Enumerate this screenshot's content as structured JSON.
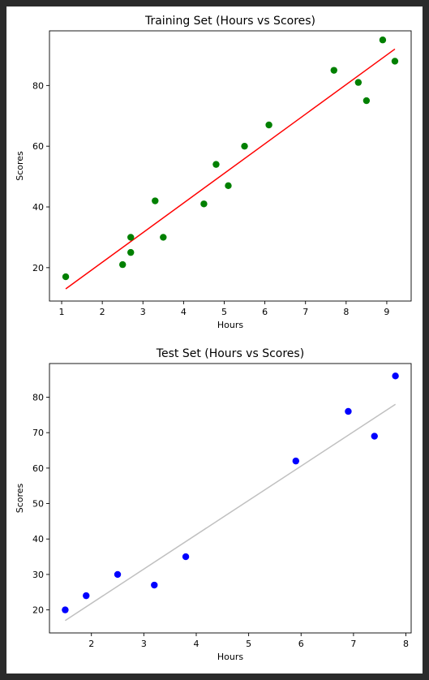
{
  "figure": {
    "background": "#2b2b2b",
    "panel_background": "#ffffff"
  },
  "chart_data": [
    {
      "type": "scatter",
      "title": "Training Set (Hours vs Scores)",
      "xlabel": "Hours",
      "ylabel": "Scores",
      "xlim": [
        0.7,
        9.6
      ],
      "ylim": [
        9,
        98
      ],
      "xticks": [
        1,
        2,
        3,
        4,
        5,
        6,
        7,
        8,
        9
      ],
      "yticks": [
        20,
        40,
        60,
        80
      ],
      "grid": false,
      "legend": "none",
      "series": [
        {
          "kind": "points",
          "color": "#008000",
          "x": [
            1.1,
            2.5,
            2.7,
            2.7,
            3.3,
            3.5,
            4.5,
            4.8,
            5.1,
            5.5,
            6.1,
            7.7,
            8.3,
            8.5,
            8.9,
            9.2
          ],
          "y": [
            17,
            21,
            25,
            30,
            42,
            30,
            41,
            54,
            47,
            60,
            67,
            85,
            81,
            75,
            95,
            88
          ]
        },
        {
          "kind": "line",
          "color": "#ff0000",
          "x": [
            1.1,
            9.2
          ],
          "y": [
            13,
            92
          ]
        }
      ]
    },
    {
      "type": "scatter",
      "title": "Test Set (Hours vs Scores)",
      "xlabel": "Hours",
      "ylabel": "Scores",
      "xlim": [
        1.2,
        8.1
      ],
      "ylim": [
        13.5,
        89.5
      ],
      "xticks": [
        2,
        3,
        4,
        5,
        6,
        7,
        8
      ],
      "yticks": [
        20,
        30,
        40,
        50,
        60,
        70,
        80
      ],
      "grid": false,
      "legend": "none",
      "series": [
        {
          "kind": "points",
          "color": "#0000ff",
          "x": [
            1.5,
            1.9,
            2.5,
            3.2,
            3.8,
            5.9,
            6.9,
            7.4,
            7.8
          ],
          "y": [
            20,
            24,
            30,
            27,
            35,
            62,
            76,
            69,
            86
          ]
        },
        {
          "kind": "line",
          "color": "#c0c0c0",
          "x": [
            1.5,
            7.8
          ],
          "y": [
            17,
            78
          ]
        }
      ]
    }
  ]
}
